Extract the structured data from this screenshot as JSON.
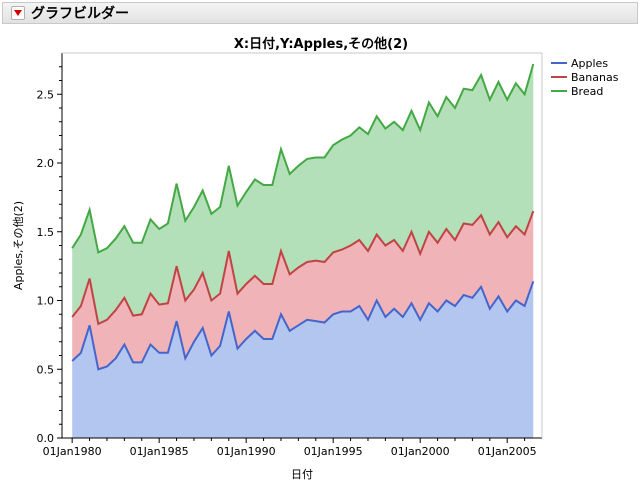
{
  "header": {
    "title": "グラフビルダー"
  },
  "chart_data": {
    "type": "area",
    "stacked": true,
    "title": "X:日付,Y:Apples,その他(2)",
    "xlabel": "日付",
    "ylabel": "Apples,その他(2)",
    "xlim": [
      "1979-06",
      "2007-01"
    ],
    "ylim": [
      0.0,
      2.8
    ],
    "x_ticks": [
      "01Jan1980",
      "01Jan1985",
      "01Jan1990",
      "01Jan1995",
      "01Jan2000",
      "01Jan2005"
    ],
    "y_ticks": [
      "0.0",
      "0.5",
      "1.0",
      "1.5",
      "2.0",
      "2.5"
    ],
    "legend_position": "top-right",
    "grid": false,
    "x": [
      "1980-01",
      "1980-07",
      "1981-01",
      "1981-07",
      "1982-01",
      "1982-07",
      "1983-01",
      "1983-07",
      "1984-01",
      "1984-07",
      "1985-01",
      "1985-07",
      "1986-01",
      "1986-07",
      "1987-01",
      "1987-07",
      "1988-01",
      "1988-07",
      "1989-01",
      "1989-07",
      "1990-01",
      "1990-07",
      "1991-01",
      "1991-07",
      "1992-01",
      "1992-07",
      "1993-01",
      "1993-07",
      "1994-01",
      "1994-07",
      "1995-01",
      "1995-07",
      "1996-01",
      "1996-07",
      "1997-01",
      "1997-07",
      "1998-01",
      "1998-07",
      "1999-01",
      "1999-07",
      "2000-01",
      "2000-07",
      "2001-01",
      "2001-07",
      "2002-01",
      "2002-07",
      "2003-01",
      "2003-07",
      "2004-01",
      "2004-07",
      "2005-01",
      "2005-07",
      "2006-01",
      "2006-07"
    ],
    "series": [
      {
        "name": "Apples",
        "color": "#4466cc",
        "fill": "#b3c6f0",
        "values": [
          0.56,
          0.62,
          0.82,
          0.5,
          0.52,
          0.58,
          0.68,
          0.55,
          0.55,
          0.68,
          0.62,
          0.62,
          0.85,
          0.58,
          0.7,
          0.8,
          0.6,
          0.67,
          0.92,
          0.65,
          0.72,
          0.78,
          0.72,
          0.72,
          0.9,
          0.78,
          0.82,
          0.86,
          0.85,
          0.84,
          0.9,
          0.92,
          0.92,
          0.96,
          0.86,
          1.0,
          0.88,
          0.94,
          0.88,
          0.98,
          0.86,
          0.98,
          0.92,
          1.0,
          0.96,
          1.04,
          1.02,
          1.1,
          0.94,
          1.03,
          0.92,
          1.0,
          0.96,
          1.14
        ]
      },
      {
        "name": "Bananas",
        "color": "#c04444",
        "fill": "#f0b3b8",
        "values": [
          0.32,
          0.34,
          0.34,
          0.33,
          0.34,
          0.35,
          0.34,
          0.34,
          0.35,
          0.37,
          0.35,
          0.36,
          0.4,
          0.42,
          0.38,
          0.4,
          0.4,
          0.38,
          0.44,
          0.4,
          0.4,
          0.4,
          0.4,
          0.4,
          0.46,
          0.41,
          0.42,
          0.42,
          0.44,
          0.44,
          0.45,
          0.45,
          0.48,
          0.48,
          0.5,
          0.48,
          0.52,
          0.5,
          0.48,
          0.52,
          0.48,
          0.52,
          0.5,
          0.52,
          0.48,
          0.52,
          0.53,
          0.52,
          0.54,
          0.54,
          0.54,
          0.54,
          0.52,
          0.51
        ]
      },
      {
        "name": "Bread",
        "color": "#44a844",
        "fill": "#b3e0b8",
        "values": [
          0.5,
          0.52,
          0.5,
          0.52,
          0.52,
          0.52,
          0.52,
          0.53,
          0.52,
          0.54,
          0.55,
          0.58,
          0.6,
          0.58,
          0.6,
          0.6,
          0.63,
          0.63,
          0.62,
          0.64,
          0.67,
          0.7,
          0.72,
          0.72,
          0.74,
          0.73,
          0.74,
          0.75,
          0.75,
          0.76,
          0.78,
          0.8,
          0.8,
          0.82,
          0.85,
          0.86,
          0.85,
          0.86,
          0.88,
          0.88,
          0.9,
          0.94,
          0.92,
          0.96,
          0.96,
          0.98,
          0.98,
          1.02,
          0.98,
          1.02,
          1.0,
          1.04,
          1.02,
          1.07
        ]
      }
    ]
  }
}
